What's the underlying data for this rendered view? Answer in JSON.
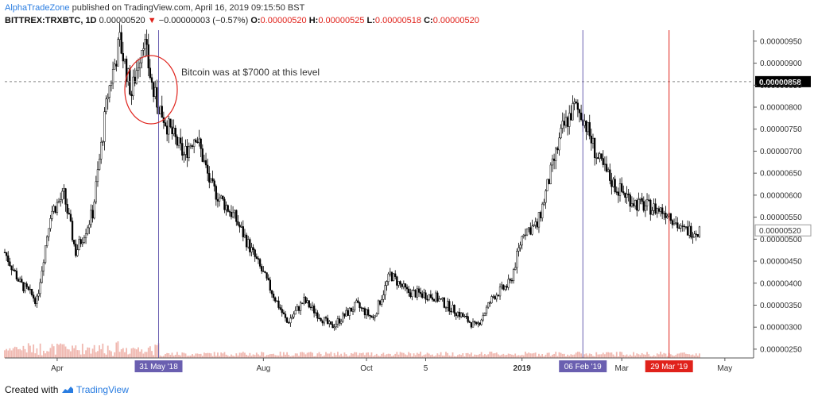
{
  "header": {
    "author": "AlphaTradeZone",
    "published": " published on TradingView.com, April 16, 2019 09:15:50 BST",
    "symbol": "BITTREX:TRXBTC, 1D",
    "last": "0.00000520",
    "change_arrow": "▼",
    "change": "−0.00000003 (−0.57%)",
    "o_label": "O:",
    "o_value": "0.00000520",
    "h_label": "H:",
    "h_value": "0.00000525",
    "l_label": "L:",
    "l_value": "0.00000518",
    "c_label": "C:",
    "c_value": "0.00000520"
  },
  "footer": {
    "created_with": "Created with",
    "brand": "TradingView",
    "logo_icon": "tradingview-cloud-icon"
  },
  "colors": {
    "candle": "#000000",
    "purple_line": "#6a5fb0",
    "red_line": "#e0221b",
    "volume": "#f0b8b0",
    "volume_ma": "#e08070",
    "axis": "#555555",
    "circle": "#e0221b"
  },
  "chart_data": {
    "type": "candlestick",
    "ylim": [
      2.3e-06,
      9.75e-06
    ],
    "x_ticks": [
      "Apr",
      "Aug",
      "Oct",
      "5",
      "2019",
      "Mar",
      "May"
    ],
    "y_ticks": [
      "0.00000950",
      "0.00000900",
      "0.00000850",
      "0.00000800",
      "0.00000750",
      "0.00000700",
      "0.00000650",
      "0.00000600",
      "0.00000550",
      "0.00000500",
      "0.00000450",
      "0.00000400",
      "0.00000350",
      "0.00000300",
      "0.00000250"
    ],
    "price_key_points": [
      [
        "2018-03-01",
        4.7e-06
      ],
      [
        "2018-03-10",
        4e-06
      ],
      [
        "2018-03-20",
        3.6e-06
      ],
      [
        "2018-03-28",
        5.6e-06
      ],
      [
        "2018-04-05",
        6e-06
      ],
      [
        "2018-04-12",
        4.7e-06
      ],
      [
        "2018-04-22",
        5.6e-06
      ],
      [
        "2018-05-01",
        8.3e-06
      ],
      [
        "2018-05-08",
        9.5e-06
      ],
      [
        "2018-05-15",
        8.3e-06
      ],
      [
        "2018-05-22",
        9.6e-06
      ],
      [
        "2018-05-28",
        8.3e-06
      ],
      [
        "2018-06-05",
        7.6e-06
      ],
      [
        "2018-06-15",
        6.9e-06
      ],
      [
        "2018-06-22",
        7.4e-06
      ],
      [
        "2018-07-01",
        6.2e-06
      ],
      [
        "2018-07-15",
        5.5e-06
      ],
      [
        "2018-08-01",
        4.2e-06
      ],
      [
        "2018-08-15",
        3.1e-06
      ],
      [
        "2018-08-25",
        3.6e-06
      ],
      [
        "2018-09-10",
        3e-06
      ],
      [
        "2018-09-25",
        3.5e-06
      ],
      [
        "2018-10-05",
        3.2e-06
      ],
      [
        "2018-10-15",
        4.2e-06
      ],
      [
        "2018-10-25",
        3.8e-06
      ],
      [
        "2018-11-10",
        3.7e-06
      ],
      [
        "2018-11-25",
        3.3e-06
      ],
      [
        "2018-12-05",
        3e-06
      ],
      [
        "2018-12-15",
        3.7e-06
      ],
      [
        "2018-12-25",
        4e-06
      ],
      [
        "2019-01-02",
        5.2e-06
      ],
      [
        "2019-01-10",
        5.3e-06
      ],
      [
        "2019-01-18",
        6.5e-06
      ],
      [
        "2019-01-25",
        7.5e-06
      ],
      [
        "2019-02-01",
        8e-06
      ],
      [
        "2019-02-06",
        7.8e-06
      ],
      [
        "2019-02-15",
        6.8e-06
      ],
      [
        "2019-02-25",
        6.2e-06
      ],
      [
        "2019-03-10",
        5.8e-06
      ],
      [
        "2019-03-20",
        5.7e-06
      ],
      [
        "2019-03-29",
        5.6e-06
      ],
      [
        "2019-04-05",
        5.2e-06
      ],
      [
        "2019-04-16",
        5.2e-06
      ]
    ],
    "vertical_markers": [
      {
        "label": "31 May '18",
        "date": "2018-05-31",
        "color": "#6a5fb0"
      },
      {
        "label": "06 Feb '19",
        "date": "2019-02-06",
        "color": "#6a5fb0"
      },
      {
        "label": "29 Mar '19",
        "date": "2019-03-29",
        "color": "#e0221b"
      }
    ],
    "horizontal_level": {
      "value": 8.58e-06,
      "label": "0.00000858"
    },
    "current_price": {
      "value": 5.2e-06,
      "label": "0.00000520"
    },
    "annotation": {
      "text": "Bitcoin was at $7000 at this level"
    }
  }
}
